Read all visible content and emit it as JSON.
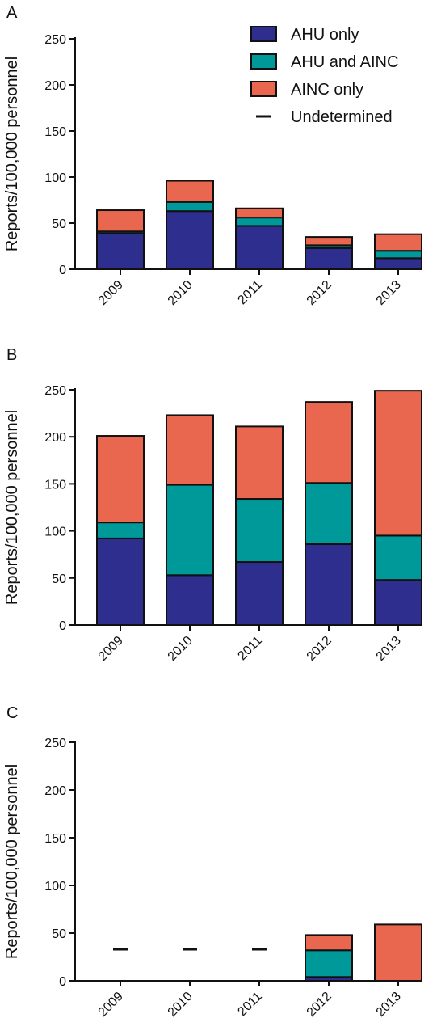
{
  "colors": {
    "ahu_only": "#2e2e8f",
    "ahu_and_ainc": "#009999",
    "ainc_only": "#e8674e",
    "undetermined": "#111111",
    "axis": "#111111"
  },
  "legend": {
    "items": [
      {
        "key": "ahu_only",
        "label": "AHU only"
      },
      {
        "key": "ahu_and_ainc",
        "label": "AHU and AINC"
      },
      {
        "key": "ainc_only",
        "label": "AINC only"
      },
      {
        "key": "undetermined",
        "label": "Undetermined"
      }
    ]
  },
  "chart_data": [
    {
      "type": "bar",
      "stacked": true,
      "panel_label": "A",
      "categories": [
        "2009",
        "2010",
        "2011",
        "2012",
        "2013"
      ],
      "ylabel": "Reports/100,000 personnel",
      "ylim": [
        0,
        250
      ],
      "yticks": [
        0,
        50,
        100,
        150,
        200,
        250
      ],
      "series": [
        {
          "name": "AHU only",
          "key": "ahu_only",
          "values": [
            39,
            63,
            47,
            23,
            12
          ]
        },
        {
          "name": "AHU and AINC",
          "key": "ahu_and_ainc",
          "values": [
            2,
            10,
            9,
            3,
            8
          ]
        },
        {
          "name": "AINC only",
          "key": "ainc_only",
          "values": [
            23,
            23,
            10,
            9,
            18
          ]
        },
        {
          "name": "Undetermined",
          "key": "undetermined",
          "values": [
            null,
            null,
            null,
            null,
            null
          ]
        }
      ],
      "legend": "top-right"
    },
    {
      "type": "bar",
      "stacked": true,
      "panel_label": "B",
      "categories": [
        "2009",
        "2010",
        "2011",
        "2012",
        "2013"
      ],
      "ylabel": "Reports/100,000 personnel",
      "ylim": [
        0,
        250
      ],
      "yticks": [
        0,
        50,
        100,
        150,
        200,
        250
      ],
      "series": [
        {
          "name": "AHU only",
          "key": "ahu_only",
          "values": [
            92,
            53,
            67,
            86,
            48
          ]
        },
        {
          "name": "AHU and AINC",
          "key": "ahu_and_ainc",
          "values": [
            17,
            96,
            67,
            65,
            47
          ]
        },
        {
          "name": "AINC only",
          "key": "ainc_only",
          "values": [
            92,
            74,
            77,
            86,
            154
          ]
        },
        {
          "name": "Undetermined",
          "key": "undetermined",
          "values": [
            null,
            null,
            null,
            null,
            null
          ]
        }
      ]
    },
    {
      "type": "bar",
      "stacked": true,
      "panel_label": "C",
      "categories": [
        "2009",
        "2010",
        "2011",
        "2012",
        "2013"
      ],
      "ylabel": "Reports/100,000 personnel",
      "ylim": [
        0,
        250
      ],
      "yticks": [
        0,
        50,
        100,
        150,
        200,
        250
      ],
      "series": [
        {
          "name": "AHU only",
          "key": "ahu_only",
          "values": [
            0,
            0,
            0,
            4,
            0
          ]
        },
        {
          "name": "AHU and AINC",
          "key": "ahu_and_ainc",
          "values": [
            0,
            0,
            0,
            28,
            0
          ]
        },
        {
          "name": "AINC only",
          "key": "ainc_only",
          "values": [
            0,
            0,
            0,
            16,
            59
          ]
        },
        {
          "name": "Undetermined",
          "key": "undetermined",
          "values": [
            33,
            33,
            33,
            null,
            null
          ]
        }
      ]
    }
  ]
}
